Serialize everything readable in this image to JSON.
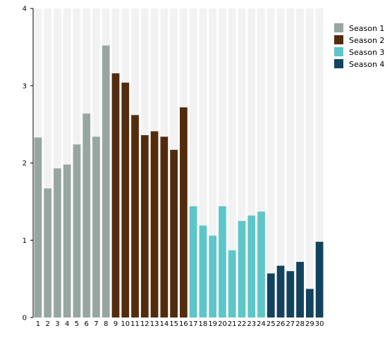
{
  "chart_data": {
    "type": "bar",
    "categories": [
      "1",
      "2",
      "3",
      "4",
      "5",
      "6",
      "7",
      "8",
      "9",
      "10",
      "11",
      "12",
      "13",
      "14",
      "15",
      "16",
      "17",
      "18",
      "19",
      "20",
      "21",
      "22",
      "23",
      "24",
      "25",
      "26",
      "27",
      "28",
      "29",
      "30"
    ],
    "values": [
      2.33,
      1.67,
      1.93,
      1.98,
      2.24,
      2.64,
      2.34,
      3.52,
      3.16,
      3.04,
      2.62,
      2.36,
      2.41,
      2.34,
      2.17,
      2.72,
      1.44,
      1.19,
      1.06,
      1.44,
      0.87,
      1.25,
      1.32,
      1.37,
      0.57,
      0.67,
      0.6,
      0.72,
      0.37,
      0.98
    ],
    "groups": [
      1,
      1,
      1,
      1,
      1,
      1,
      1,
      1,
      2,
      2,
      2,
      2,
      2,
      2,
      2,
      2,
      3,
      3,
      3,
      3,
      3,
      3,
      3,
      3,
      4,
      4,
      4,
      4,
      4,
      4
    ],
    "series": [
      {
        "name": "Season 1",
        "color": "#98a6a1"
      },
      {
        "name": "Season 2",
        "color": "#532b0d"
      },
      {
        "name": "Season 3",
        "color": "#5ec6c8"
      },
      {
        "name": "Season 4",
        "color": "#13425f"
      }
    ],
    "yticks": [
      0,
      1,
      2,
      3,
      4
    ],
    "ylim": [
      0,
      4
    ],
    "title": "",
    "xlabel": "",
    "ylabel": "",
    "grid": false,
    "background_band_color": "#f2f2f2",
    "legend_position": "right"
  }
}
